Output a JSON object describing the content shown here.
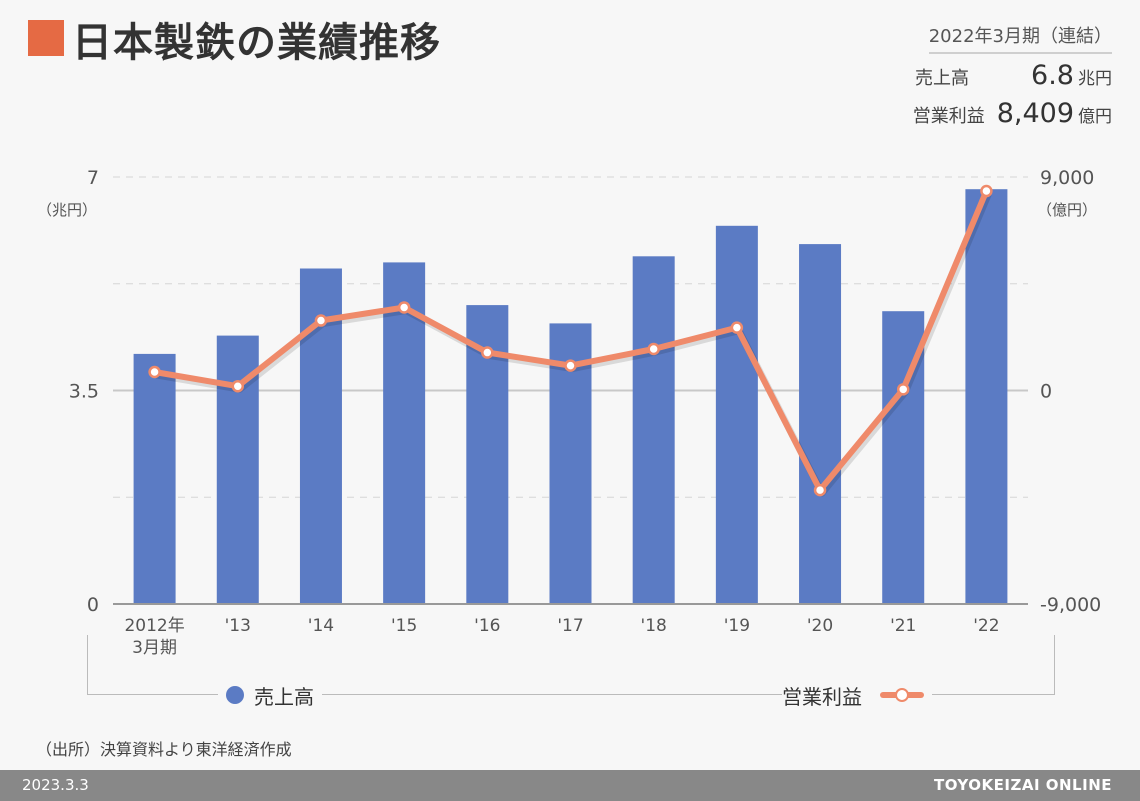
{
  "header": {
    "title": "日本製鉄の業績推移",
    "accent_color": "#e56a44"
  },
  "summary": {
    "period": "2022年3月期（連結）",
    "sales_label": "売上高",
    "sales_value": "6.8",
    "sales_unit": "兆円",
    "profit_label": "営業利益",
    "profit_value": "8,409",
    "profit_unit": "億円"
  },
  "chart_data": {
    "type": "bar+line",
    "categories": [
      "2012年\n3月期",
      "'13",
      "'14",
      "'15",
      "'16",
      "'17",
      "'18",
      "'19",
      "'20",
      "'21",
      "'22"
    ],
    "series": [
      {
        "name": "売上高",
        "kind": "bar",
        "axis": "left",
        "color": "#5b7bc4",
        "values": [
          4.1,
          4.4,
          5.5,
          5.6,
          4.9,
          4.6,
          5.7,
          6.2,
          5.9,
          4.8,
          6.8
        ]
      },
      {
        "name": "営業利益",
        "kind": "line",
        "axis": "right",
        "color": "#ef8a6a",
        "values": [
          780,
          180,
          2950,
          3500,
          1600,
          1050,
          1750,
          2650,
          -4200,
          50,
          8409
        ]
      }
    ],
    "left_axis": {
      "unit": "（兆円）",
      "ylim": [
        0,
        7
      ],
      "ticks": [
        0,
        3.5,
        7
      ],
      "tick_labels": [
        "0",
        "3.5",
        "7"
      ]
    },
    "right_axis": {
      "unit": "（億円）",
      "ylim": [
        -9000,
        9000
      ],
      "ticks": [
        -9000,
        0,
        9000
      ],
      "tick_labels": [
        "-9,000",
        "0",
        "9,000"
      ]
    },
    "grid": true
  },
  "source": "（出所）決算資料より東洋経済作成",
  "footer": {
    "date": "2023.3.3",
    "brand": "TOYOKEIZAI ONLINE"
  }
}
